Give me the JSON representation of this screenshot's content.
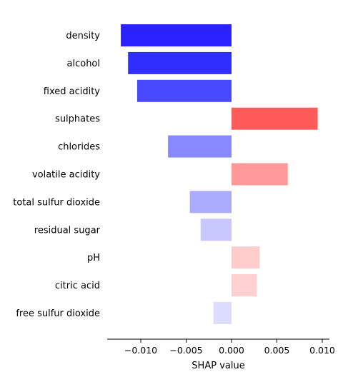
{
  "chart_data": {
    "type": "bar",
    "orientation": "horizontal",
    "title": "",
    "xlabel": "SHAP value",
    "ylabel": "",
    "xlim": [
      -0.0135,
      0.0107
    ],
    "grid": false,
    "categories": [
      "density",
      "alcohol",
      "fixed acidity",
      "sulphates",
      "chlorides",
      "volatile acidity",
      "total sulfur dioxide",
      "residual sugar",
      "pH",
      "citric acid",
      "free sulfur dioxide"
    ],
    "values": [
      -0.0122,
      -0.0114,
      -0.0104,
      0.0095,
      -0.007,
      0.0062,
      -0.0046,
      -0.0034,
      0.0031,
      0.0028,
      -0.002
    ],
    "colors": [
      "#2a23ff",
      "#2e2eff",
      "#4848ff",
      "#ff5a5a",
      "#8888ff",
      "#ff9999",
      "#acacff",
      "#c8c8ff",
      "#ffcccc",
      "#ffd0d0",
      "#dcdcff"
    ],
    "x_ticks": [
      -0.01,
      -0.005,
      0.0,
      0.005,
      0.01
    ],
    "x_tick_labels": [
      "−0.010",
      "−0.005",
      "0.000",
      "0.005",
      "0.010"
    ]
  }
}
